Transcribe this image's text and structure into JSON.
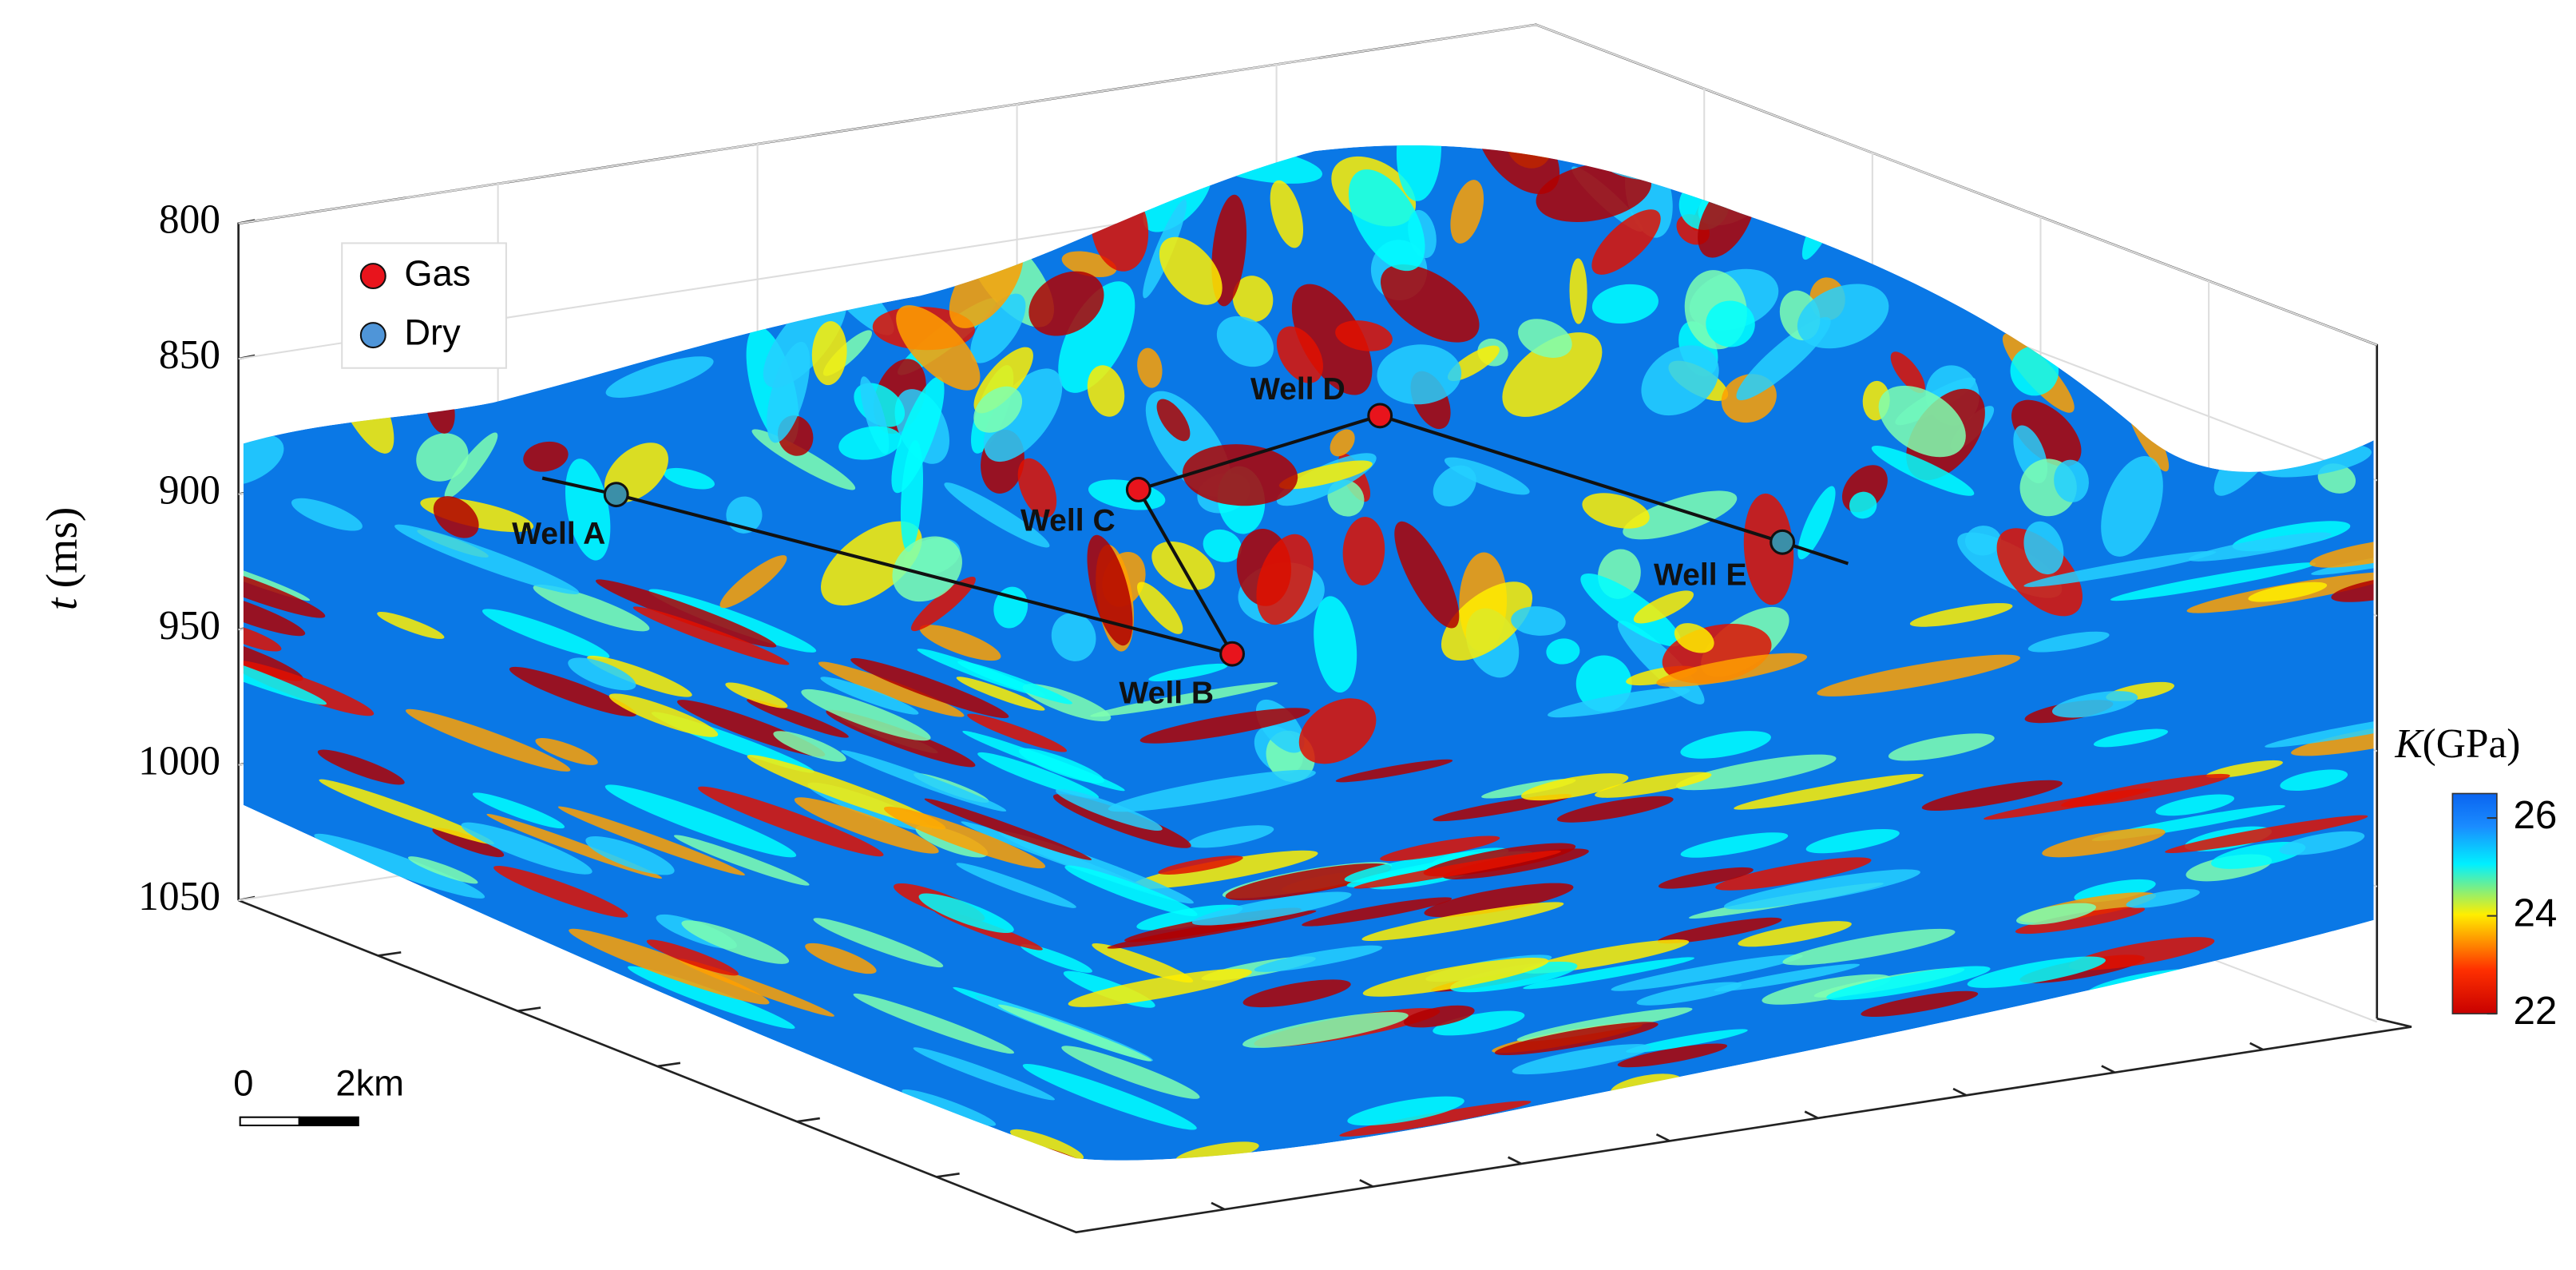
{
  "chart_data": {
    "type": "volume",
    "ylabel": {
      "var": "t",
      "unit": "(ms)"
    },
    "ylim": [
      800,
      1050
    ],
    "yticks": [
      800,
      850,
      900,
      950,
      1000,
      1050
    ],
    "grid": true,
    "legend": [
      {
        "name": "Gas",
        "color": "#e8141c"
      },
      {
        "name": "Dry",
        "color": "#4f95d8"
      }
    ],
    "wells": [
      {
        "label": "Well A",
        "color": "#3b8fa8"
      },
      {
        "label": "Well B",
        "color": "#e8141c"
      },
      {
        "label": "Well C",
        "color": "#e8141c"
      },
      {
        "label": "Well D",
        "color": "#e8141c"
      },
      {
        "label": "Well E",
        "color": "#3b8fa8"
      }
    ],
    "colorbar": {
      "var": "K",
      "unit": "(GPa)",
      "lim": [
        22,
        26.5
      ],
      "ticks": [
        22,
        24,
        26
      ]
    },
    "scale_bar": {
      "labels": [
        "0",
        "2km"
      ]
    }
  }
}
